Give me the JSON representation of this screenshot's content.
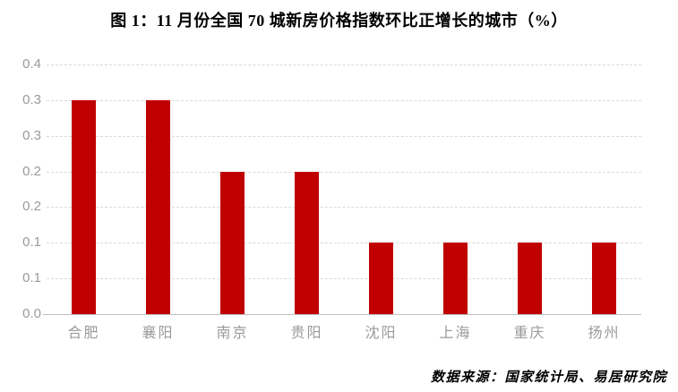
{
  "title": "图 1：11 月份全国 70 城新房价格指数环比正增长的城市（%）",
  "source_note": "数据来源：国家统计局、易居研究院",
  "colors": {
    "bar": "#c00000",
    "gridline": "#d9d9d9",
    "axis_line": "#bfbfbf",
    "tick_label": "#9a9a9a",
    "title_text": "#000000",
    "background": "#ffffff"
  },
  "chart_data": {
    "type": "bar",
    "title": "图 1：11 月份全国 70 城新房价格指数环比正增长的城市（%）",
    "categories": [
      "合肥",
      "襄阳",
      "南京",
      "贵阳",
      "沈阳",
      "上海",
      "重庆",
      "扬州"
    ],
    "values": [
      0.3,
      0.3,
      0.2,
      0.2,
      0.1,
      0.1,
      0.1,
      0.1
    ],
    "xlabel": "",
    "ylabel": "",
    "ylim": [
      0,
      0.35
    ],
    "y_ticks": [
      {
        "value": 0.0,
        "label": "0.0"
      },
      {
        "value": 0.05,
        "label": "0.1"
      },
      {
        "value": 0.1,
        "label": "0.1"
      },
      {
        "value": 0.15,
        "label": "0.2"
      },
      {
        "value": 0.2,
        "label": "0.2"
      },
      {
        "value": 0.25,
        "label": "0.3"
      },
      {
        "value": 0.3,
        "label": "0.3"
      },
      {
        "value": 0.35,
        "label": "0.4"
      }
    ],
    "grid": "horizontal-dashed",
    "legend": "none",
    "bar_color": "#c00000",
    "source_note": "数据来源：国家统计局、易居研究院"
  }
}
